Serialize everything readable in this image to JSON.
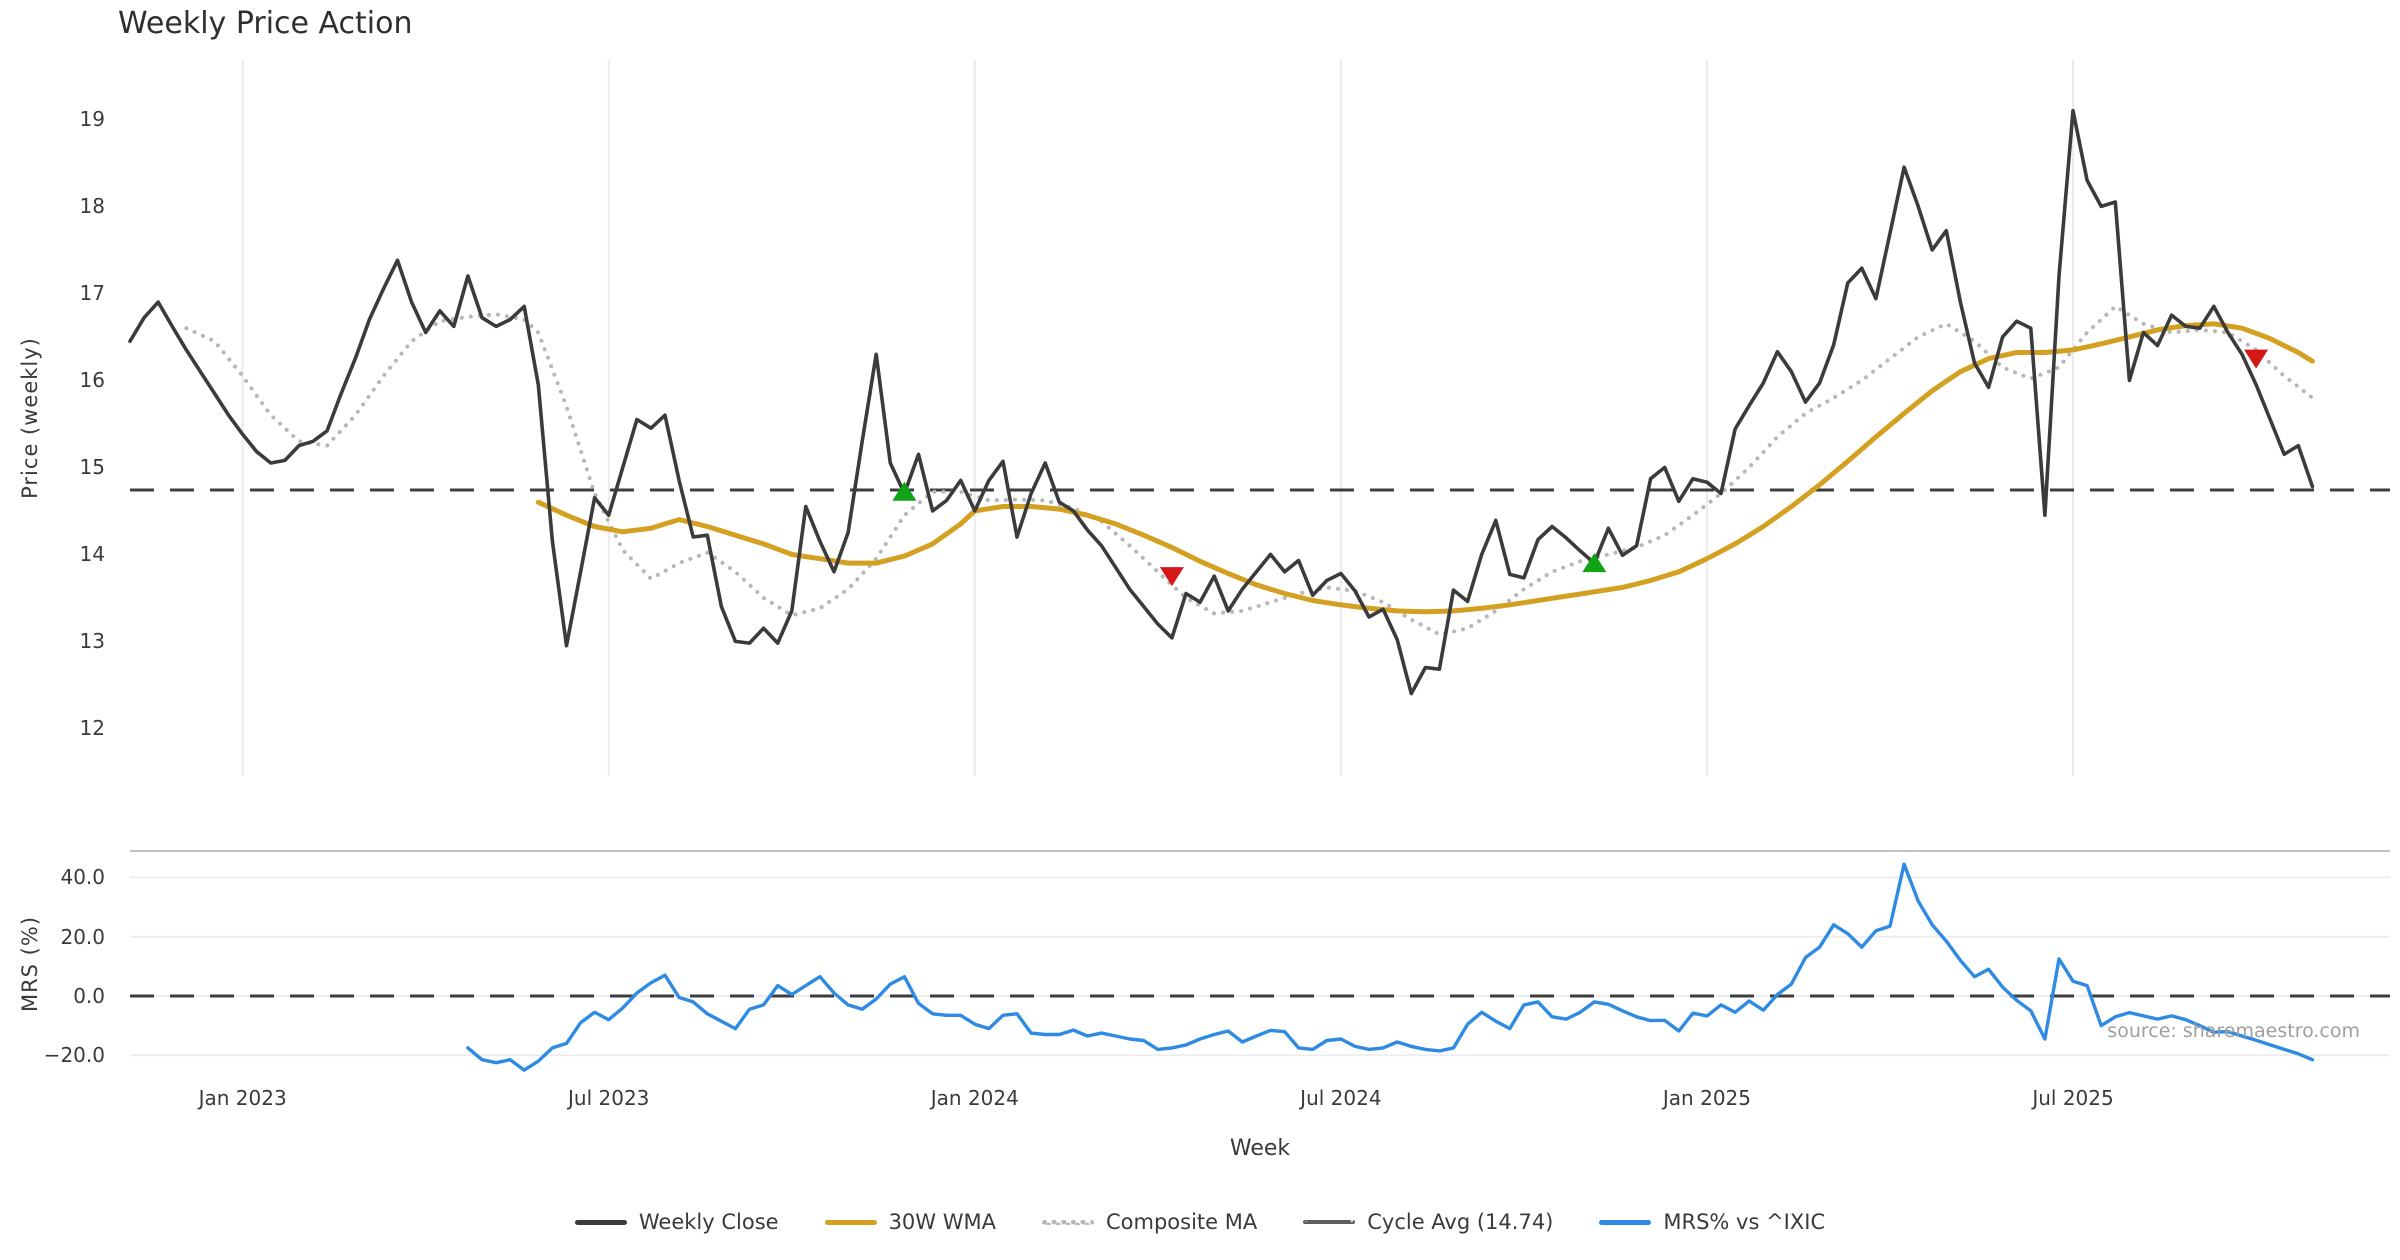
{
  "title": "Weekly Price Action",
  "source_note": "source: sharemaestro.com",
  "colors": {
    "weekly_close": "#3b3b3b",
    "wma_30w": "#d4a021",
    "composite_ma": "#b7b7b7",
    "cycle_avg": "#3d3d3d",
    "cycle_avg_legend": "#5f5f5f",
    "mrs": "#2e8ae2",
    "buy_marker": "#0fa315",
    "sell_marker": "#d41717",
    "grid": "#ebebeb",
    "panel_spine": "#c2c2c2"
  },
  "legend": [
    {
      "label": "Weekly Close",
      "style": "solid",
      "color": "#3b3b3b"
    },
    {
      "label": "30W WMA",
      "style": "solid",
      "color": "#d4a021"
    },
    {
      "label": "Composite MA",
      "style": "dotted",
      "color": "#b7b7b7"
    },
    {
      "label": "Cycle Avg (14.74)",
      "style": "dashed",
      "color": "#5f5f5f"
    },
    {
      "label": "MRS% vs ^IXIC",
      "style": "solid",
      "color": "#2e8ae2"
    }
  ],
  "chart_data": {
    "type": "line",
    "x_axis": {
      "label": "Week",
      "ticks": [
        {
          "week": 8,
          "label": "Jan 2023"
        },
        {
          "week": 34,
          "label": "Jul 2023"
        },
        {
          "week": 60,
          "label": "Jan 2024"
        },
        {
          "week": 86,
          "label": "Jul 2024"
        },
        {
          "week": 112,
          "label": "Jan 2025"
        },
        {
          "week": 138,
          "label": "Jul 2025"
        }
      ]
    },
    "main_panel": {
      "ylabel": "Price (weekly)",
      "ylim": [
        11.5,
        19.7
      ],
      "yticks": [
        12,
        13,
        14,
        15,
        16,
        17,
        18,
        19
      ],
      "grid": "vertical",
      "cycle_avg": 14.74,
      "weekly_close": {
        "start_week": 0,
        "values": [
          16.45,
          16.72,
          16.9,
          16.62,
          16.35,
          16.1,
          15.85,
          15.6,
          15.38,
          15.18,
          15.05,
          15.08,
          15.25,
          15.3,
          15.42,
          15.85,
          16.25,
          16.7,
          17.05,
          17.38,
          16.9,
          16.55,
          16.8,
          16.62,
          17.2,
          16.72,
          16.62,
          16.7,
          16.85,
          15.95,
          14.15,
          12.95,
          13.8,
          14.65,
          14.45,
          15.0,
          15.55,
          15.45,
          15.6,
          14.85,
          14.2,
          14.22,
          13.4,
          13.0,
          12.98,
          13.15,
          12.98,
          13.35,
          14.55,
          14.15,
          13.8,
          14.25,
          15.3,
          16.3,
          15.05,
          14.7,
          15.15,
          14.5,
          14.62,
          14.85,
          14.5,
          14.85,
          15.07,
          14.2,
          14.7,
          15.05,
          14.6,
          14.5,
          14.28,
          14.1,
          13.85,
          13.6,
          13.4,
          13.2,
          13.04,
          13.55,
          13.45,
          13.75,
          13.35,
          13.6,
          13.8,
          14.0,
          13.8,
          13.93,
          13.53,
          13.7,
          13.78,
          13.58,
          13.28,
          13.37,
          13.02,
          12.4,
          12.7,
          12.68,
          13.59,
          13.46,
          14.0,
          14.39,
          13.77,
          13.73,
          14.17,
          14.32,
          14.19,
          14.04,
          13.9,
          14.3,
          13.99,
          14.1,
          14.87,
          15.0,
          14.61,
          14.87,
          14.83,
          14.7,
          15.44,
          15.71,
          15.97,
          16.33,
          16.1,
          15.75,
          15.97,
          16.41,
          17.12,
          17.29,
          16.94,
          17.69,
          18.45,
          18.0,
          17.5,
          17.72,
          16.9,
          16.2,
          15.92,
          16.5,
          16.68,
          16.6,
          14.45,
          17.2,
          19.1,
          18.3,
          18.0,
          18.05,
          16.0,
          16.55,
          16.4,
          16.75,
          16.62,
          16.6,
          16.85,
          16.55,
          16.3,
          15.95,
          15.55,
          15.15,
          15.25,
          14.78
        ]
      },
      "wma_30w": {
        "keypoints": [
          [
            29,
            14.6
          ],
          [
            31,
            14.45
          ],
          [
            33,
            14.32
          ],
          [
            35,
            14.26
          ],
          [
            37,
            14.3
          ],
          [
            39,
            14.4
          ],
          [
            41,
            14.32
          ],
          [
            43,
            14.22
          ],
          [
            45,
            14.12
          ],
          [
            47,
            14.0
          ],
          [
            49,
            13.95
          ],
          [
            51,
            13.9
          ],
          [
            53,
            13.9
          ],
          [
            55,
            13.98
          ],
          [
            57,
            14.12
          ],
          [
            59,
            14.35
          ],
          [
            60,
            14.5
          ],
          [
            62,
            14.55
          ],
          [
            64,
            14.55
          ],
          [
            66,
            14.52
          ],
          [
            68,
            14.45
          ],
          [
            70,
            14.35
          ],
          [
            72,
            14.22
          ],
          [
            74,
            14.08
          ],
          [
            76,
            13.92
          ],
          [
            78,
            13.78
          ],
          [
            80,
            13.65
          ],
          [
            82,
            13.55
          ],
          [
            84,
            13.47
          ],
          [
            86,
            13.42
          ],
          [
            88,
            13.38
          ],
          [
            90,
            13.35
          ],
          [
            92,
            13.34
          ],
          [
            94,
            13.35
          ],
          [
            96,
            13.38
          ],
          [
            98,
            13.42
          ],
          [
            100,
            13.47
          ],
          [
            102,
            13.52
          ],
          [
            104,
            13.57
          ],
          [
            106,
            13.62
          ],
          [
            108,
            13.7
          ],
          [
            110,
            13.8
          ],
          [
            112,
            13.95
          ],
          [
            114,
            14.12
          ],
          [
            116,
            14.32
          ],
          [
            118,
            14.55
          ],
          [
            120,
            14.8
          ],
          [
            122,
            15.07
          ],
          [
            124,
            15.35
          ],
          [
            126,
            15.62
          ],
          [
            128,
            15.88
          ],
          [
            130,
            16.1
          ],
          [
            132,
            16.25
          ],
          [
            134,
            16.32
          ],
          [
            136,
            16.32
          ],
          [
            138,
            16.35
          ],
          [
            140,
            16.42
          ],
          [
            142,
            16.5
          ],
          [
            144,
            16.58
          ],
          [
            146,
            16.63
          ],
          [
            148,
            16.65
          ],
          [
            150,
            16.6
          ],
          [
            152,
            16.48
          ],
          [
            154,
            16.32
          ],
          [
            155,
            16.22
          ]
        ]
      },
      "composite_ma": {
        "keypoints": [
          [
            4,
            16.6
          ],
          [
            6,
            16.45
          ],
          [
            8,
            16.05
          ],
          [
            10,
            15.6
          ],
          [
            12,
            15.3
          ],
          [
            14,
            15.25
          ],
          [
            16,
            15.6
          ],
          [
            18,
            16.05
          ],
          [
            20,
            16.45
          ],
          [
            22,
            16.68
          ],
          [
            24,
            16.73
          ],
          [
            26,
            16.76
          ],
          [
            28,
            16.7
          ],
          [
            29,
            16.55
          ],
          [
            31,
            15.7
          ],
          [
            33,
            14.7
          ],
          [
            35,
            14.05
          ],
          [
            37,
            13.72
          ],
          [
            39,
            13.9
          ],
          [
            41,
            14.02
          ],
          [
            43,
            13.8
          ],
          [
            45,
            13.5
          ],
          [
            47,
            13.3
          ],
          [
            49,
            13.38
          ],
          [
            51,
            13.6
          ],
          [
            53,
            13.95
          ],
          [
            55,
            14.45
          ],
          [
            57,
            14.72
          ],
          [
            59,
            14.72
          ],
          [
            61,
            14.62
          ],
          [
            63,
            14.63
          ],
          [
            65,
            14.62
          ],
          [
            67,
            14.53
          ],
          [
            69,
            14.38
          ],
          [
            71,
            14.1
          ],
          [
            73,
            13.8
          ],
          [
            75,
            13.5
          ],
          [
            77,
            13.32
          ],
          [
            79,
            13.35
          ],
          [
            81,
            13.45
          ],
          [
            83,
            13.55
          ],
          [
            85,
            13.62
          ],
          [
            87,
            13.58
          ],
          [
            89,
            13.45
          ],
          [
            91,
            13.25
          ],
          [
            93,
            13.08
          ],
          [
            95,
            13.15
          ],
          [
            97,
            13.35
          ],
          [
            99,
            13.6
          ],
          [
            101,
            13.8
          ],
          [
            103,
            13.92
          ],
          [
            105,
            14.0
          ],
          [
            107,
            14.08
          ],
          [
            109,
            14.22
          ],
          [
            111,
            14.45
          ],
          [
            113,
            14.7
          ],
          [
            115,
            15.0
          ],
          [
            117,
            15.35
          ],
          [
            119,
            15.62
          ],
          [
            121,
            15.8
          ],
          [
            123,
            16.0
          ],
          [
            125,
            16.25
          ],
          [
            127,
            16.5
          ],
          [
            129,
            16.65
          ],
          [
            131,
            16.45
          ],
          [
            133,
            16.15
          ],
          [
            135,
            16.02
          ],
          [
            137,
            16.15
          ],
          [
            139,
            16.55
          ],
          [
            141,
            16.85
          ],
          [
            143,
            16.65
          ],
          [
            145,
            16.55
          ],
          [
            147,
            16.58
          ],
          [
            149,
            16.55
          ],
          [
            151,
            16.35
          ],
          [
            153,
            16.05
          ],
          [
            155,
            15.8
          ]
        ]
      },
      "markers": {
        "buy": [
          {
            "week": 55,
            "value": 14.72
          },
          {
            "week": 104,
            "value": 13.9
          }
        ],
        "sell": [
          {
            "week": 74,
            "value": 13.75
          },
          {
            "week": 151,
            "value": 16.25
          }
        ]
      }
    },
    "mrs_panel": {
      "ylabel": "MRS (%)",
      "ylim": [
        -27.5,
        48.9
      ],
      "yticks": [
        {
          "value": 40,
          "label": "40.0"
        },
        {
          "value": 20,
          "label": "20.0"
        },
        {
          "value": 0,
          "label": "0.0"
        },
        {
          "value": -20,
          "label": "−20.0"
        }
      ],
      "zero_line": 0,
      "grid": "horizontal",
      "mrs": {
        "start_week": 24,
        "values": [
          -17.5,
          -21.5,
          -22.5,
          -21.5,
          -25.0,
          -22.0,
          -17.5,
          -16.0,
          -9.0,
          -5.5,
          -8.0,
          -4.0,
          1.0,
          4.5,
          7.0,
          -0.5,
          -2.0,
          -6.0,
          -8.5,
          -11.0,
          -4.5,
          -3.0,
          3.5,
          0.5,
          3.5,
          6.5,
          1.0,
          -3.0,
          -4.5,
          -1.0,
          4.0,
          6.5,
          -2.5,
          -6.0,
          -6.5,
          -6.5,
          -9.5,
          -11.0,
          -6.5,
          -6.0,
          -12.5,
          -13.0,
          -13.0,
          -11.5,
          -13.5,
          -12.5,
          -13.5,
          -14.5,
          -15.0,
          -18.0,
          -17.5,
          -16.5,
          -14.5,
          -13.0,
          -11.8,
          -15.5,
          -13.5,
          -11.6,
          -12.0,
          -17.5,
          -18.0,
          -15.0,
          -14.5,
          -17.0,
          -18.0,
          -17.5,
          -15.5,
          -17.0,
          -18.0,
          -18.5,
          -17.5,
          -9.5,
          -5.5,
          -8.5,
          -11.0,
          -3.0,
          -2.0,
          -7.0,
          -7.8,
          -5.5,
          -2.0,
          -2.8,
          -5.0,
          -7.0,
          -8.3,
          -8.2,
          -11.8,
          -5.8,
          -6.7,
          -3.0,
          -5.5,
          -1.7,
          -4.8,
          0.5,
          4.0,
          13.0,
          16.5,
          24.0,
          21.0,
          16.5,
          22.0,
          23.5,
          44.5,
          32.0,
          24.0,
          18.5,
          12.0,
          6.5,
          9.0,
          3.0,
          -1.5,
          -5.0,
          -14.5,
          12.5,
          5.0,
          3.5,
          -10.0,
          -7.0,
          -5.6,
          -6.7,
          -7.8,
          -6.7,
          -8.0,
          -10.0,
          -12.2,
          -12.0,
          -13.5,
          -14.9,
          -16.5,
          -18.0,
          -19.5,
          -21.5
        ]
      }
    }
  }
}
